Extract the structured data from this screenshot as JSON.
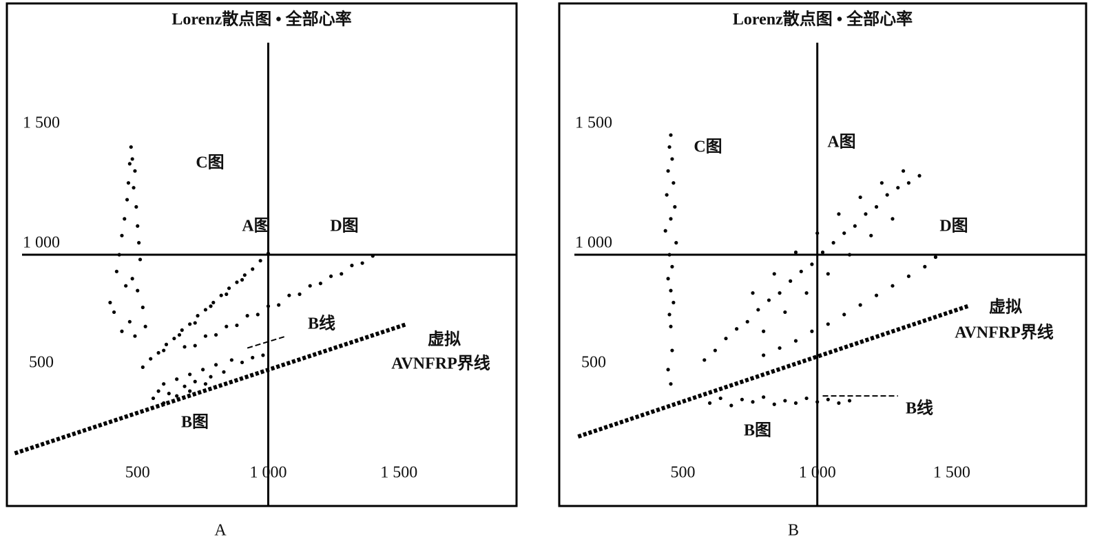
{
  "chart_data": [
    {
      "type": "scatter",
      "title": "Lorenz散点图 • 全部心率",
      "caption": "A",
      "color": "#000000",
      "xlim": [
        0,
        1950
      ],
      "ylim": [
        -50,
        2050
      ],
      "xticks": [
        500,
        {
          "value": 1000,
          "label": "1 000"
        },
        {
          "value": 1500,
          "label": "1 500"
        }
      ],
      "yticks": [
        500,
        {
          "value": 1000,
          "label": "1 000"
        },
        {
          "value": 1500,
          "label": "1 500"
        }
      ],
      "crosshair": {
        "x": 1000,
        "y": 1000
      },
      "series": [
        {
          "name": "C图",
          "x": [
            475,
            480,
            470,
            490,
            465,
            485,
            460,
            495,
            450,
            500,
            440,
            505,
            430,
            510,
            420,
            480,
            455,
            500,
            395,
            520,
            410,
            470,
            530,
            440,
            490
          ],
          "y": [
            1450,
            1400,
            1380,
            1350,
            1300,
            1280,
            1230,
            1200,
            1150,
            1120,
            1080,
            1050,
            1000,
            980,
            930,
            900,
            870,
            850,
            800,
            780,
            760,
            720,
            700,
            680,
            660
          ]
        },
        {
          "name": "A图",
          "x": [
            520,
            550,
            580,
            610,
            640,
            670,
            700,
            730,
            760,
            790,
            820,
            850,
            880,
            910,
            940,
            970,
            1000,
            600,
            660,
            720,
            780,
            840,
            900
          ],
          "y": [
            530,
            565,
            590,
            625,
            650,
            685,
            710,
            745,
            770,
            800,
            830,
            860,
            885,
            915,
            940,
            975,
            1005,
            600,
            665,
            715,
            785,
            835,
            895
          ]
        },
        {
          "name": "D图",
          "x": [
            680,
            720,
            760,
            800,
            840,
            880,
            920,
            960,
            1000,
            1040,
            1080,
            1120,
            1160,
            1200,
            1240,
            1280,
            1320,
            1360,
            1400
          ],
          "y": [
            615,
            620,
            660,
            665,
            700,
            705,
            745,
            750,
            785,
            790,
            830,
            835,
            870,
            880,
            910,
            920,
            955,
            965,
            995
          ]
        },
        {
          "name": "B图",
          "x": [
            560,
            580,
            600,
            620,
            650,
            680,
            700,
            720,
            750,
            780,
            800,
            830,
            860,
            900,
            940,
            980,
            600,
            650,
            700,
            760
          ],
          "y": [
            400,
            430,
            460,
            420,
            480,
            450,
            500,
            470,
            520,
            490,
            540,
            510,
            560,
            550,
            570,
            580,
            380,
            410,
            430,
            460
          ]
        }
      ],
      "reference_lines": [
        {
          "labels": [
            "虚拟",
            "AVNFRP界线"
          ],
          "x": [
            30,
            1530
          ],
          "y": [
            170,
            710
          ]
        },
        {
          "labels": [
            "B线"
          ],
          "x": [
            920,
            1070
          ],
          "y": [
            610,
            660
          ]
        }
      ]
    },
    {
      "type": "scatter",
      "title": "Lorenz散点图 • 全部心率",
      "caption": "B",
      "color": "#000000",
      "xlim": [
        40,
        2000
      ],
      "ylim": [
        -50,
        2050
      ],
      "xticks": [
        500,
        {
          "value": 1000,
          "label": "1 000"
        },
        {
          "value": 1500,
          "label": "1 500"
        }
      ],
      "yticks": [
        500,
        {
          "value": 1000,
          "label": "1 000"
        },
        {
          "value": 1500,
          "label": "1 500"
        }
      ],
      "crosshair": {
        "x": 1000,
        "y": 1000
      },
      "series": [
        {
          "name": "C图",
          "x": [
            455,
            450,
            460,
            445,
            465,
            440,
            470,
            455,
            435,
            475,
            450,
            460,
            445,
            455,
            465,
            450,
            455,
            460,
            445,
            455
          ],
          "y": [
            1500,
            1450,
            1400,
            1350,
            1300,
            1250,
            1200,
            1150,
            1100,
            1050,
            1000,
            950,
            900,
            850,
            800,
            750,
            700,
            600,
            520,
            460
          ]
        },
        {
          "name": "A图",
          "x": [
            580,
            620,
            660,
            700,
            740,
            780,
            820,
            860,
            900,
            940,
            980,
            1020,
            1060,
            1100,
            1140,
            1180,
            1220,
            1260,
            1300,
            1340,
            1380,
            760,
            840,
            920,
            1000,
            1080,
            1160,
            1240,
            1320,
            800,
            880,
            960,
            1040,
            1120,
            1200,
            1280
          ],
          "y": [
            560,
            600,
            650,
            690,
            720,
            770,
            810,
            840,
            890,
            930,
            960,
            1010,
            1050,
            1090,
            1120,
            1170,
            1200,
            1250,
            1280,
            1300,
            1330,
            840,
            920,
            1010,
            1090,
            1170,
            1240,
            1300,
            1350,
            680,
            760,
            840,
            920,
            1000,
            1080,
            1150
          ]
        },
        {
          "name": "D图",
          "x": [
            800,
            860,
            920,
            980,
            1040,
            1100,
            1160,
            1220,
            1280,
            1340,
            1400,
            1440
          ],
          "y": [
            580,
            610,
            640,
            680,
            710,
            750,
            790,
            830,
            870,
            910,
            950,
            990
          ]
        },
        {
          "name": "B图",
          "x": [
            600,
            640,
            680,
            720,
            760,
            800,
            840,
            880,
            920,
            960,
            1000,
            1040,
            1080,
            1120
          ],
          "y": [
            380,
            400,
            370,
            395,
            385,
            405,
            375,
            390,
            380,
            400,
            385,
            395,
            380,
            390
          ]
        }
      ],
      "reference_lines": [
        {
          "labels": [
            "虚拟",
            "AVNFRP界线"
          ],
          "x": [
            110,
            1560
          ],
          "y": [
            240,
            785
          ]
        },
        {
          "labels": [
            "B线"
          ],
          "x": [
            1020,
            1300
          ],
          "y": [
            410,
            410
          ]
        }
      ]
    }
  ]
}
